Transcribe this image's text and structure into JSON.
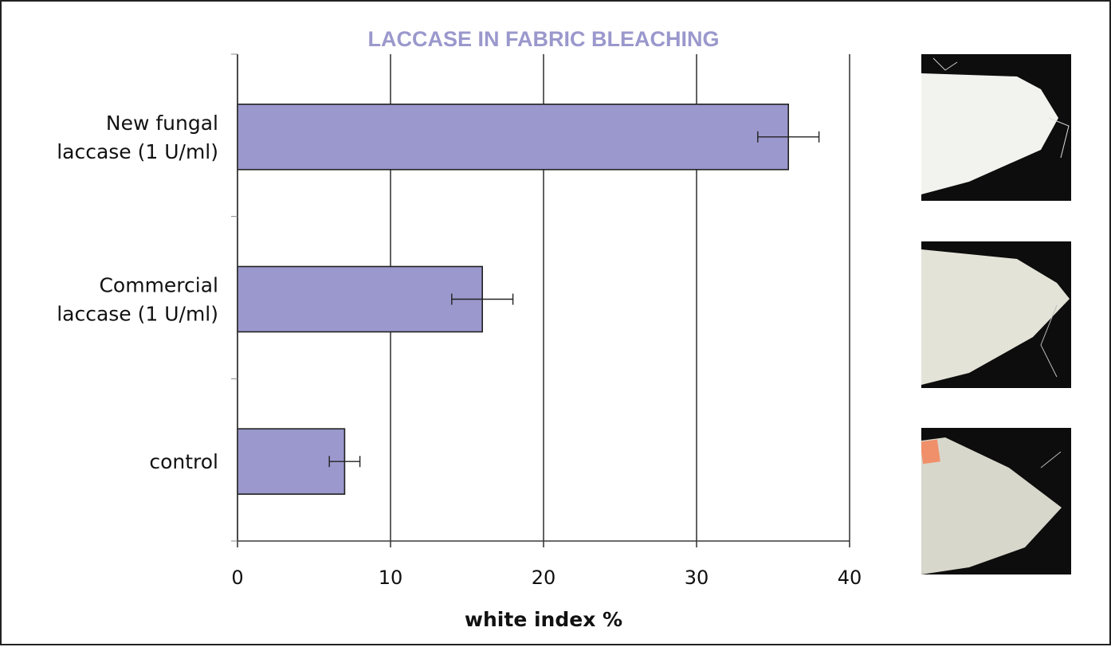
{
  "chart_data": {
    "type": "bar",
    "orientation": "horizontal",
    "title": "LACCASE IN FABRIC BLEACHING",
    "xlabel": "white index %",
    "ylabel": "",
    "xlim": [
      0,
      40
    ],
    "x_ticks": [
      "0",
      "10",
      "20",
      "30",
      "40"
    ],
    "grid": true,
    "categories": [
      [
        "New fungal",
        "laccase (1 U/ml)"
      ],
      [
        "Commercial",
        "laccase (1 U/ml)"
      ],
      [
        "control"
      ]
    ],
    "values": [
      36,
      16,
      7
    ],
    "error": [
      2,
      2,
      1
    ],
    "colors": {
      "bar": "#9a98cc",
      "title": "#9a98cc",
      "axis": "#222222"
    }
  },
  "photos": [
    "fabric-sample-new-fungal",
    "fabric-sample-commercial",
    "fabric-sample-control"
  ]
}
